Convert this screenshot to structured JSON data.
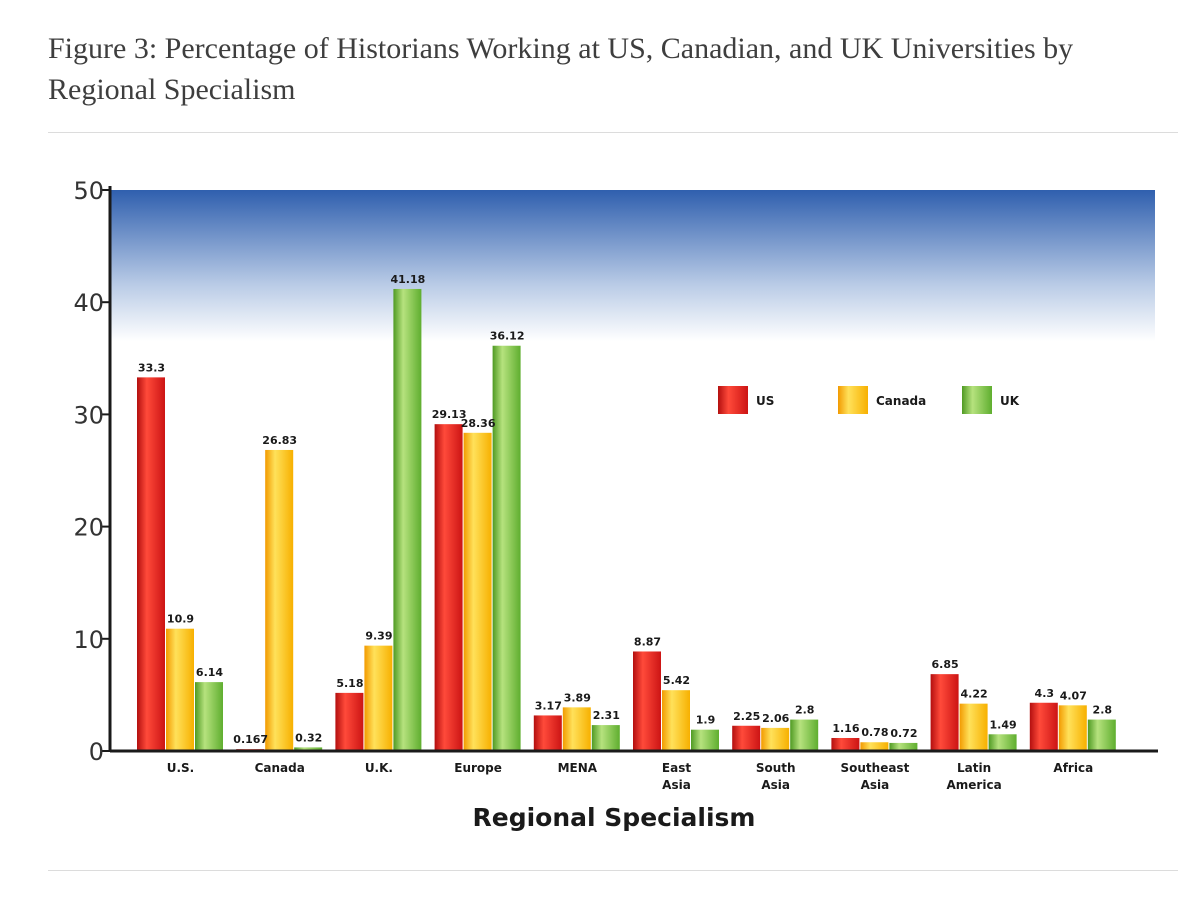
{
  "figure": {
    "title": "Figure 3: Percentage of Historians Working at US, Canadian, and UK Universities by Regional Specialism"
  },
  "colors": {
    "US": "#e21e1e",
    "Canada": "#ffc20e",
    "UK": "#7cc242",
    "background_top": "#2f5fae",
    "axis": "#1a1a1a"
  },
  "chart_data": {
    "type": "bar",
    "title": "",
    "xlabel": "Regional Specialism",
    "ylabel": "",
    "ylim": [
      0,
      50
    ],
    "yticks": [
      0,
      10,
      20,
      30,
      40,
      50
    ],
    "grid": false,
    "legend_placement": "right",
    "categories": [
      [
        "U.S."
      ],
      [
        "Canada"
      ],
      [
        "U.K."
      ],
      [
        "Europe"
      ],
      [
        "MENA"
      ],
      [
        "East",
        "Asia"
      ],
      [
        "South",
        "Asia"
      ],
      [
        "Southeast",
        "Asia"
      ],
      [
        "Latin",
        "America"
      ],
      [
        "Africa"
      ]
    ],
    "series": [
      {
        "name": "US",
        "values": [
          33.3,
          0.167,
          5.18,
          29.13,
          3.17,
          8.87,
          2.25,
          1.16,
          6.85,
          4.3
        ],
        "labels": [
          "33.3",
          "0.167",
          "5.18",
          "29.13",
          "3.17",
          "8.87",
          "2.25",
          "1.16",
          "6.85",
          "4.3"
        ]
      },
      {
        "name": "Canada",
        "values": [
          10.9,
          26.83,
          9.39,
          28.36,
          3.89,
          5.42,
          2.06,
          0.78,
          4.22,
          4.07
        ],
        "labels": [
          "10.9",
          "26.83",
          "9.39",
          "28.36",
          "3.89",
          "5.42",
          "2.06",
          "0.78",
          "4.22",
          "4.07"
        ]
      },
      {
        "name": "UK",
        "values": [
          6.14,
          0.32,
          41.18,
          36.12,
          2.31,
          1.9,
          2.8,
          0.72,
          1.49,
          2.8
        ],
        "labels": [
          "6.14",
          "0.32",
          "41.18",
          "36.12",
          "2.31",
          "1.9",
          "2.8",
          "0.72",
          "1.49",
          "2.8"
        ]
      }
    ]
  }
}
